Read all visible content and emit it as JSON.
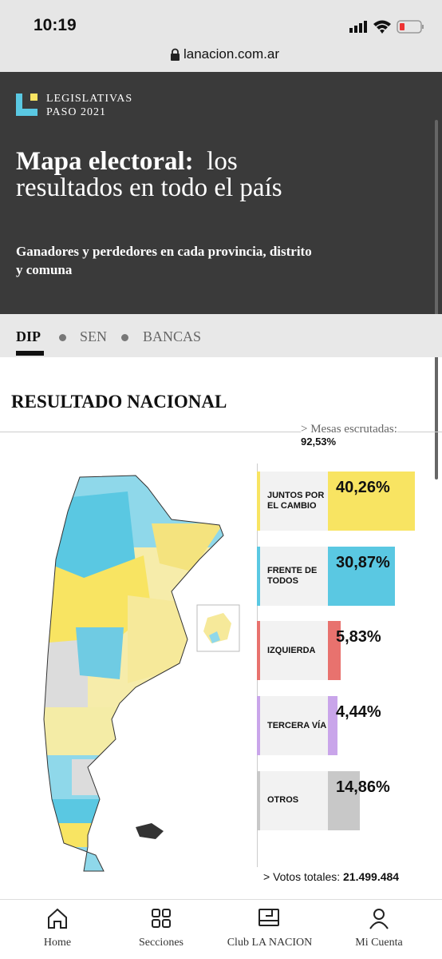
{
  "status_bar": {
    "time": "10:19"
  },
  "url_bar": {
    "url": "lanacion.com.ar"
  },
  "header": {
    "kicker_line1": "LEGISLATIVAS",
    "kicker_line2": "PASO 2021",
    "title_bold": "Mapa electoral:",
    "title_rest": "los resultados en todo el país",
    "subtitle": "Ganadores y perdedores en cada provincia, distrito y comuna"
  },
  "tabs": [
    "DIP",
    "SEN",
    "BANCAS"
  ],
  "section_title": "RESULTADO NACIONAL",
  "scrutiny": {
    "label": "> Mesas escrutadas:",
    "value": "92,53%"
  },
  "chart_data": {
    "type": "bar",
    "orientation": "horizontal",
    "categories": [
      "JUNTOS POR EL CAMBIO",
      "FRENTE DE TODOS",
      "IZQUIERDA",
      "TERCERA VÍA",
      "OTROS"
    ],
    "values": [
      40.26,
      30.87,
      5.83,
      4.44,
      14.86
    ],
    "value_labels": [
      "40,26%",
      "30,87%",
      "5,83%",
      "4,44%",
      "14,86%"
    ],
    "colors": [
      "#f8e462",
      "#5ac8e2",
      "#e8726e",
      "#c9a5ea",
      "#c8c8c8"
    ]
  },
  "total_votes": {
    "label": "> Votos totales:",
    "value": "21.499.484"
  },
  "nav": [
    "Home",
    "Secciones",
    "Club LA NACION",
    "Mi Cuenta"
  ]
}
